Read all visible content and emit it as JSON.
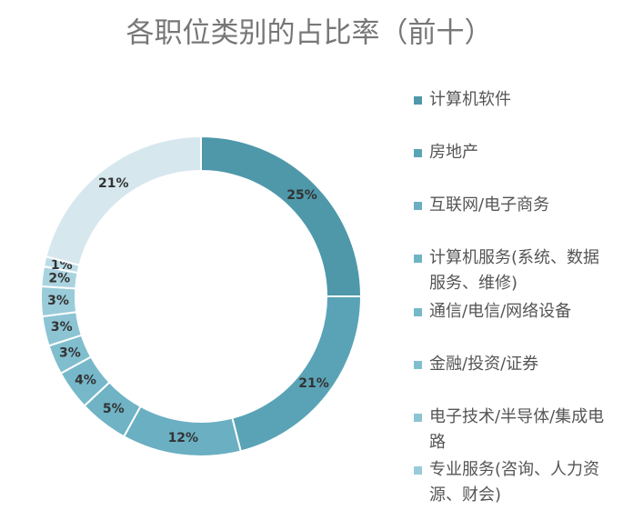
{
  "chart_data": {
    "type": "donut",
    "title": "各职位类别的占比率（前十）",
    "categories": [
      "计算机软件",
      "房地产",
      "互联网/电子商务",
      "计算机服务(系统、数据服务、维修)",
      "通信/电信/网络设备",
      "金融/投资/证券",
      "电子技术/半导体/集成电路",
      "专业服务(咨询、人力资源、财会)",
      null,
      null,
      null
    ],
    "values": [
      25,
      21,
      12,
      5,
      4,
      3,
      3,
      3,
      2,
      1,
      21
    ],
    "value_labels": [
      "25%",
      "21%",
      "12%",
      "5%",
      "4%",
      "3%",
      "3%",
      "3%",
      "2%",
      "1%",
      "21%"
    ],
    "colors": [
      "#4e98aa",
      "#5aa3b6",
      "#6aafc2",
      "#6fb3c5",
      "#76b8ca",
      "#80bece",
      "#8cc4d4",
      "#9acbd9",
      "#aad3e0",
      "#bcdce6",
      "#d6e7ee"
    ]
  }
}
